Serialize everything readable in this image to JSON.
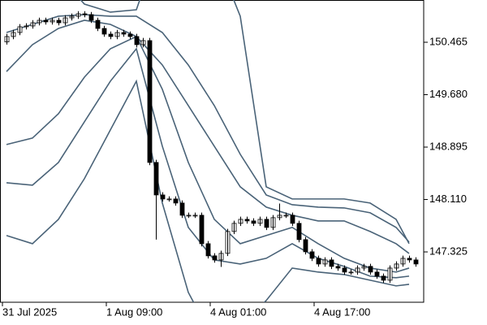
{
  "chart_data": {
    "type": "candlestick",
    "categories": [
      "31 Jul 2025",
      null,
      null,
      null,
      null,
      null,
      null,
      null,
      null,
      null,
      null,
      null,
      null,
      null,
      null,
      null,
      "1 Aug 09:00",
      null,
      null,
      null,
      null,
      null,
      null,
      null,
      null,
      null,
      null,
      null,
      null,
      null,
      null,
      null,
      "4 Aug 01:00",
      null,
      null,
      null,
      null,
      null,
      null,
      null,
      null,
      null,
      null,
      null,
      null,
      null,
      null,
      null,
      "4 Aug 17:00",
      null,
      null,
      null,
      null,
      null,
      null,
      null,
      null,
      null,
      null,
      null,
      null,
      null,
      null,
      null
    ],
    "candles": {
      "open": [
        150.47,
        150.551,
        150.611,
        150.697,
        150.709,
        150.757,
        150.794,
        150.77,
        150.794,
        150.757,
        150.83,
        150.855,
        150.891,
        150.879,
        150.794,
        150.672,
        150.587,
        150.551,
        150.611,
        150.587,
        150.551,
        150.429,
        150.49,
        148.665,
        148.178,
        148.118,
        148.118,
        148.057,
        147.874,
        147.874,
        147.874,
        147.448,
        147.266,
        147.205,
        147.303,
        147.631,
        147.753,
        147.813,
        147.789,
        147.753,
        147.813,
        147.692,
        147.838,
        147.874,
        147.874,
        147.753,
        147.509,
        147.327,
        147.229,
        147.144,
        147.205,
        147.108,
        147.083,
        147.023,
        147.023,
        147.083,
        147.108,
        147.023,
        146.962,
        146.901,
        147.083,
        147.144,
        147.229,
        147.205
      ],
      "high": [
        150.591,
        150.651,
        150.737,
        150.749,
        150.797,
        150.834,
        150.834,
        150.834,
        150.834,
        150.87,
        150.895,
        150.931,
        150.931,
        150.919,
        150.834,
        150.712,
        150.627,
        150.651,
        150.651,
        150.627,
        150.591,
        150.53,
        150.53,
        148.705,
        148.218,
        148.158,
        148.158,
        148.097,
        147.914,
        147.914,
        147.914,
        147.488,
        147.306,
        147.343,
        147.671,
        147.793,
        147.853,
        147.853,
        147.829,
        147.853,
        147.853,
        147.878,
        148.05,
        147.914,
        147.914,
        147.793,
        147.549,
        147.367,
        147.269,
        147.245,
        147.245,
        147.148,
        147.123,
        147.063,
        147.123,
        147.148,
        147.148,
        147.063,
        147.002,
        147.123,
        147.184,
        147.269,
        147.269,
        147.245
      ],
      "low": [
        150.43,
        150.511,
        150.571,
        150.657,
        150.669,
        150.717,
        150.73,
        150.73,
        150.717,
        150.717,
        150.79,
        150.815,
        150.839,
        150.754,
        150.632,
        150.547,
        150.511,
        150.511,
        150.547,
        150.511,
        150.389,
        150.389,
        148.625,
        147.51,
        148.078,
        148.078,
        148.017,
        147.834,
        147.834,
        147.834,
        147.408,
        147.226,
        147.165,
        147.1,
        147.263,
        147.591,
        147.713,
        147.749,
        147.713,
        147.713,
        147.652,
        147.652,
        147.798,
        147.834,
        147.713,
        147.469,
        147.287,
        147.189,
        147.104,
        147.104,
        147.068,
        147.043,
        146.983,
        146.983,
        146.983,
        147.043,
        146.983,
        146.922,
        146.861,
        146.861,
        147.043,
        147.104,
        147.165,
        147.104
      ],
      "close": [
        150.551,
        150.611,
        150.697,
        150.709,
        150.757,
        150.794,
        150.77,
        150.794,
        150.757,
        150.83,
        150.855,
        150.891,
        150.879,
        150.794,
        150.672,
        150.587,
        150.551,
        150.611,
        150.587,
        150.551,
        150.429,
        150.49,
        148.665,
        148.178,
        148.118,
        148.118,
        148.057,
        147.874,
        147.874,
        147.874,
        147.448,
        147.266,
        147.205,
        147.303,
        147.631,
        147.753,
        147.813,
        147.789,
        147.753,
        147.813,
        147.692,
        147.838,
        147.874,
        147.874,
        147.753,
        147.509,
        147.327,
        147.229,
        147.144,
        147.205,
        147.108,
        147.083,
        147.023,
        147.023,
        147.083,
        147.108,
        147.023,
        146.962,
        146.901,
        147.083,
        147.144,
        147.229,
        147.205,
        147.144
      ],
      "up_color": "#ffffff",
      "down_color": "#000000",
      "outline": "#000000"
    },
    "bands": {
      "color": "#4a6378",
      "x": [
        0,
        4,
        8,
        12,
        16,
        20,
        24,
        28,
        32,
        36,
        40,
        44,
        48,
        52,
        56,
        60,
        62
      ],
      "lines": [
        [
          151.463,
          151.585,
          151.463,
          151.037,
          150.916,
          150.952,
          152.071,
          152.071,
          151.828,
          150.855,
          148.3,
          148.118,
          148.118,
          148.118,
          148.057,
          147.813,
          147.448
        ],
        [
          150.611,
          150.733,
          150.855,
          150.879,
          150.855,
          150.855,
          150.611,
          150.125,
          149.517,
          148.787,
          148.178,
          148.032,
          147.996,
          147.984,
          147.911,
          147.692,
          147.473
        ],
        [
          150.027,
          150.429,
          150.672,
          150.794,
          150.733,
          150.551,
          150.125,
          149.517,
          148.908,
          148.3,
          147.996,
          147.874,
          147.789,
          147.789,
          147.631,
          147.448,
          147.302
        ],
        [
          148.933,
          149.03,
          149.395,
          149.942,
          150.368,
          150.551,
          149.76,
          148.665,
          147.813,
          147.448,
          147.57,
          147.692,
          147.448,
          147.229,
          147.083,
          147.023,
          147.083
        ],
        [
          148.361,
          148.325,
          148.665,
          149.273,
          149.882,
          150.368,
          148.908,
          147.692,
          147.205,
          147.144,
          147.229,
          147.448,
          147.229,
          147.108,
          146.962,
          146.938,
          146.962
        ],
        [
          147.57,
          147.448,
          147.813,
          148.422,
          149.152,
          149.882,
          148.057,
          146.719,
          145.989,
          146.232,
          146.597,
          147.083,
          147.023,
          146.986,
          146.901,
          146.816,
          146.84
        ]
      ]
    },
    "ylim": [
      146.571,
      151.098
    ],
    "yticks": [
      150.465,
      {
        "value": 149.68,
        "label": "149.680"
      },
      148.895,
      {
        "value": 148.11,
        "label": "148.110"
      },
      147.325
    ]
  }
}
